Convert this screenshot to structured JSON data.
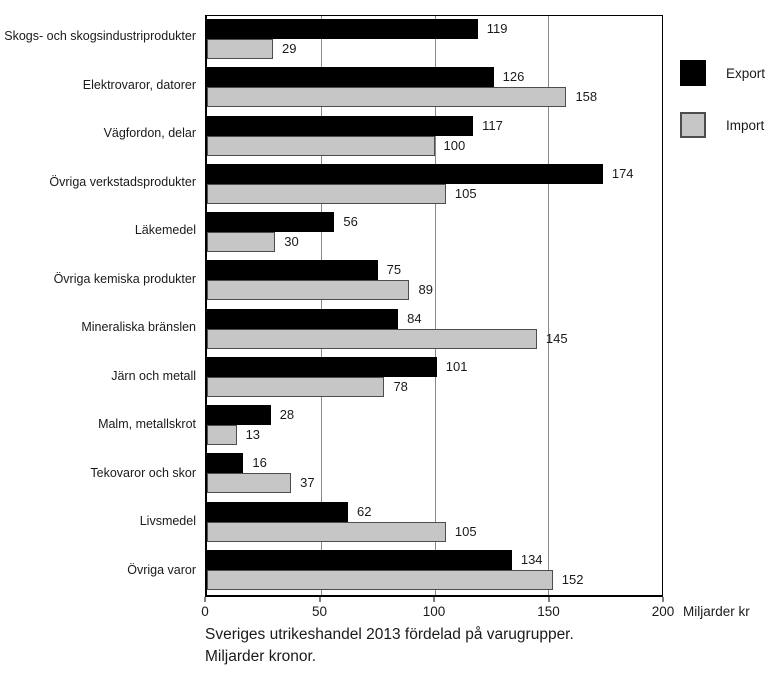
{
  "chart_data": {
    "type": "bar",
    "orientation": "horizontal",
    "title": "",
    "categories": [
      "Skogs- och skogsindustriprodukter",
      "Elektrovaror, datorer",
      "Vägfordon, delar",
      "Övriga verkstadsprodukter",
      "Läkemedel",
      "Övriga kemiska produkter",
      "Mineraliska bränslen",
      "Järn och metall",
      "Malm, metallskrot",
      "Tekovaror och skor",
      "Livsmedel",
      "Övriga varor"
    ],
    "series": [
      {
        "name": "Export",
        "color": "#000000",
        "values": [
          119,
          126,
          117,
          174,
          56,
          75,
          84,
          101,
          28,
          16,
          62,
          134
        ]
      },
      {
        "name": "Import",
        "color": "#c6c6c6",
        "values": [
          29,
          158,
          100,
          105,
          30,
          89,
          145,
          78,
          13,
          37,
          105,
          152
        ]
      }
    ],
    "xlim": [
      0,
      200
    ],
    "xticks": [
      0,
      50,
      100,
      150,
      200
    ],
    "gridlines_at": [
      50,
      100,
      150
    ],
    "grid": "vertical",
    "legend_position": "top-right",
    "x_unit_label": "Miljarder kr",
    "data_labels": "shown at end of each bar"
  },
  "legend": {
    "export_label": "Export",
    "import_label": "Import"
  },
  "axis": {
    "unit_label": "Miljarder kr"
  },
  "caption": {
    "line1": "Sveriges utrikeshandel 2013 fördelad på varugrupper.",
    "line2": "Miljarder kronor."
  },
  "colors": {
    "export_bar": "#000000",
    "import_bar": "#c6c6c6",
    "import_bar_border": "#4d4d4d",
    "gridline": "#888888",
    "axis_line": "#000000",
    "text": "#1a1a1a",
    "background": "#ffffff"
  }
}
